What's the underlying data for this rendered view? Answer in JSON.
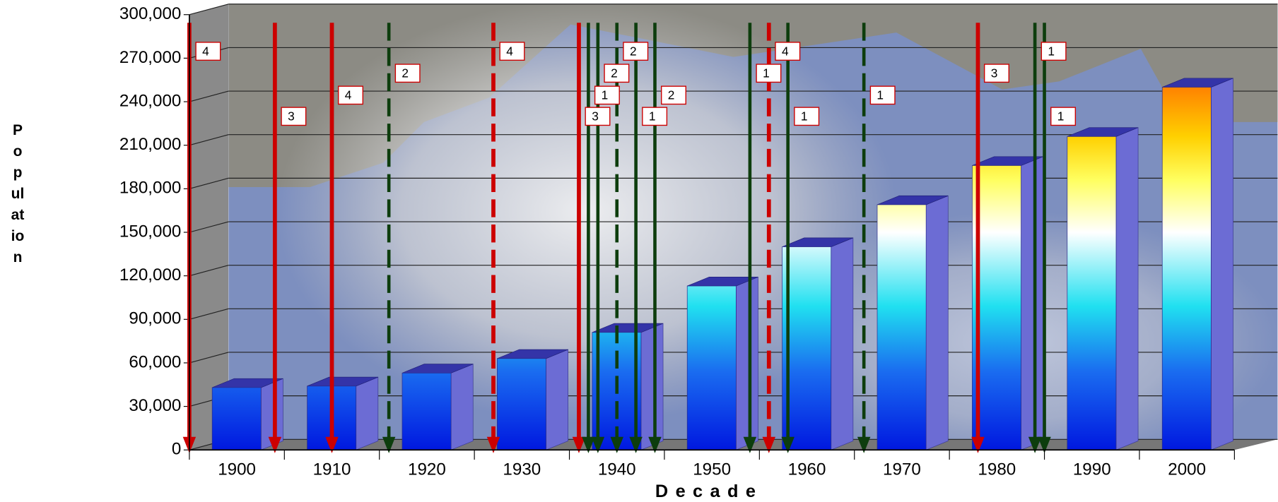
{
  "chart_data": {
    "type": "bar3d",
    "x_label": "Decade",
    "y_label": "Population",
    "categories": [
      "1900",
      "1910",
      "1920",
      "1930",
      "1940",
      "1950",
      "1960",
      "1970",
      "1980",
      "1990",
      "2000"
    ],
    "values": [
      43000,
      44000,
      53000,
      63000,
      81000,
      113000,
      140000,
      169000,
      196000,
      216000,
      250000
    ],
    "ylim": [
      0,
      300000
    ],
    "yticks": [
      0,
      {
        "value": 30000,
        "label": "30,000"
      },
      {
        "value": 60000,
        "label": "60,000"
      },
      {
        "value": 90000,
        "label": "90,000"
      },
      {
        "value": 120000,
        "label": "120,000"
      },
      {
        "value": 150000,
        "label": "150,000"
      },
      {
        "value": 180000,
        "label": "180,000"
      },
      {
        "value": 210000,
        "label": "210,000"
      },
      {
        "value": 240000,
        "label": "240,000"
      },
      {
        "value": 270000,
        "label": "270,000"
      },
      {
        "value": 300000,
        "label": "300,000"
      }
    ],
    "xlim": [
      1900,
      2010
    ],
    "grid": true,
    "hurricanes": [
      {
        "year": 1900,
        "category": "4",
        "color": "#cc0000",
        "dashed": false
      },
      {
        "year": 1909,
        "category": "3",
        "color": "#cc0000",
        "dashed": false
      },
      {
        "year": 1915,
        "category": "4",
        "color": "#cc0000",
        "dashed": false
      },
      {
        "year": 1921,
        "category": "2",
        "color": "#0d3d0d",
        "dashed": true
      },
      {
        "year": 1932,
        "category": "4",
        "color": "#cc0000",
        "dashed": true
      },
      {
        "year": 1941,
        "category": "3",
        "color": "#cc0000",
        "dashed": false
      },
      {
        "year": 1942,
        "category": "1",
        "color": "#0d3d0d",
        "dashed": false
      },
      {
        "year": 1943,
        "category": "2",
        "color": "#0d3d0d",
        "dashed": false
      },
      {
        "year": 1945,
        "category": "2",
        "color": "#0d3d0d",
        "dashed": true
      },
      {
        "year": 1947,
        "category": "1",
        "color": "#0d3d0d",
        "dashed": false
      },
      {
        "year": 1949,
        "category": "2",
        "color": "#0d3d0d",
        "dashed": false
      },
      {
        "year": 1959,
        "category": "1",
        "color": "#0d3d0d",
        "dashed": false
      },
      {
        "year": 1961,
        "category": "4",
        "color": "#cc0000",
        "dashed": true
      },
      {
        "year": 1963,
        "category": "1",
        "color": "#0d3d0d",
        "dashed": false
      },
      {
        "year": 1971,
        "category": "1",
        "color": "#0d3d0d",
        "dashed": true
      },
      {
        "year": 1983,
        "category": "3",
        "color": "#cc0000",
        "dashed": false
      },
      {
        "year": 1989,
        "category": "1",
        "color": "#0d3d0d",
        "dashed": false
      },
      {
        "year": 1990,
        "category": "1",
        "color": "#0d3d0d",
        "dashed": false
      }
    ]
  }
}
